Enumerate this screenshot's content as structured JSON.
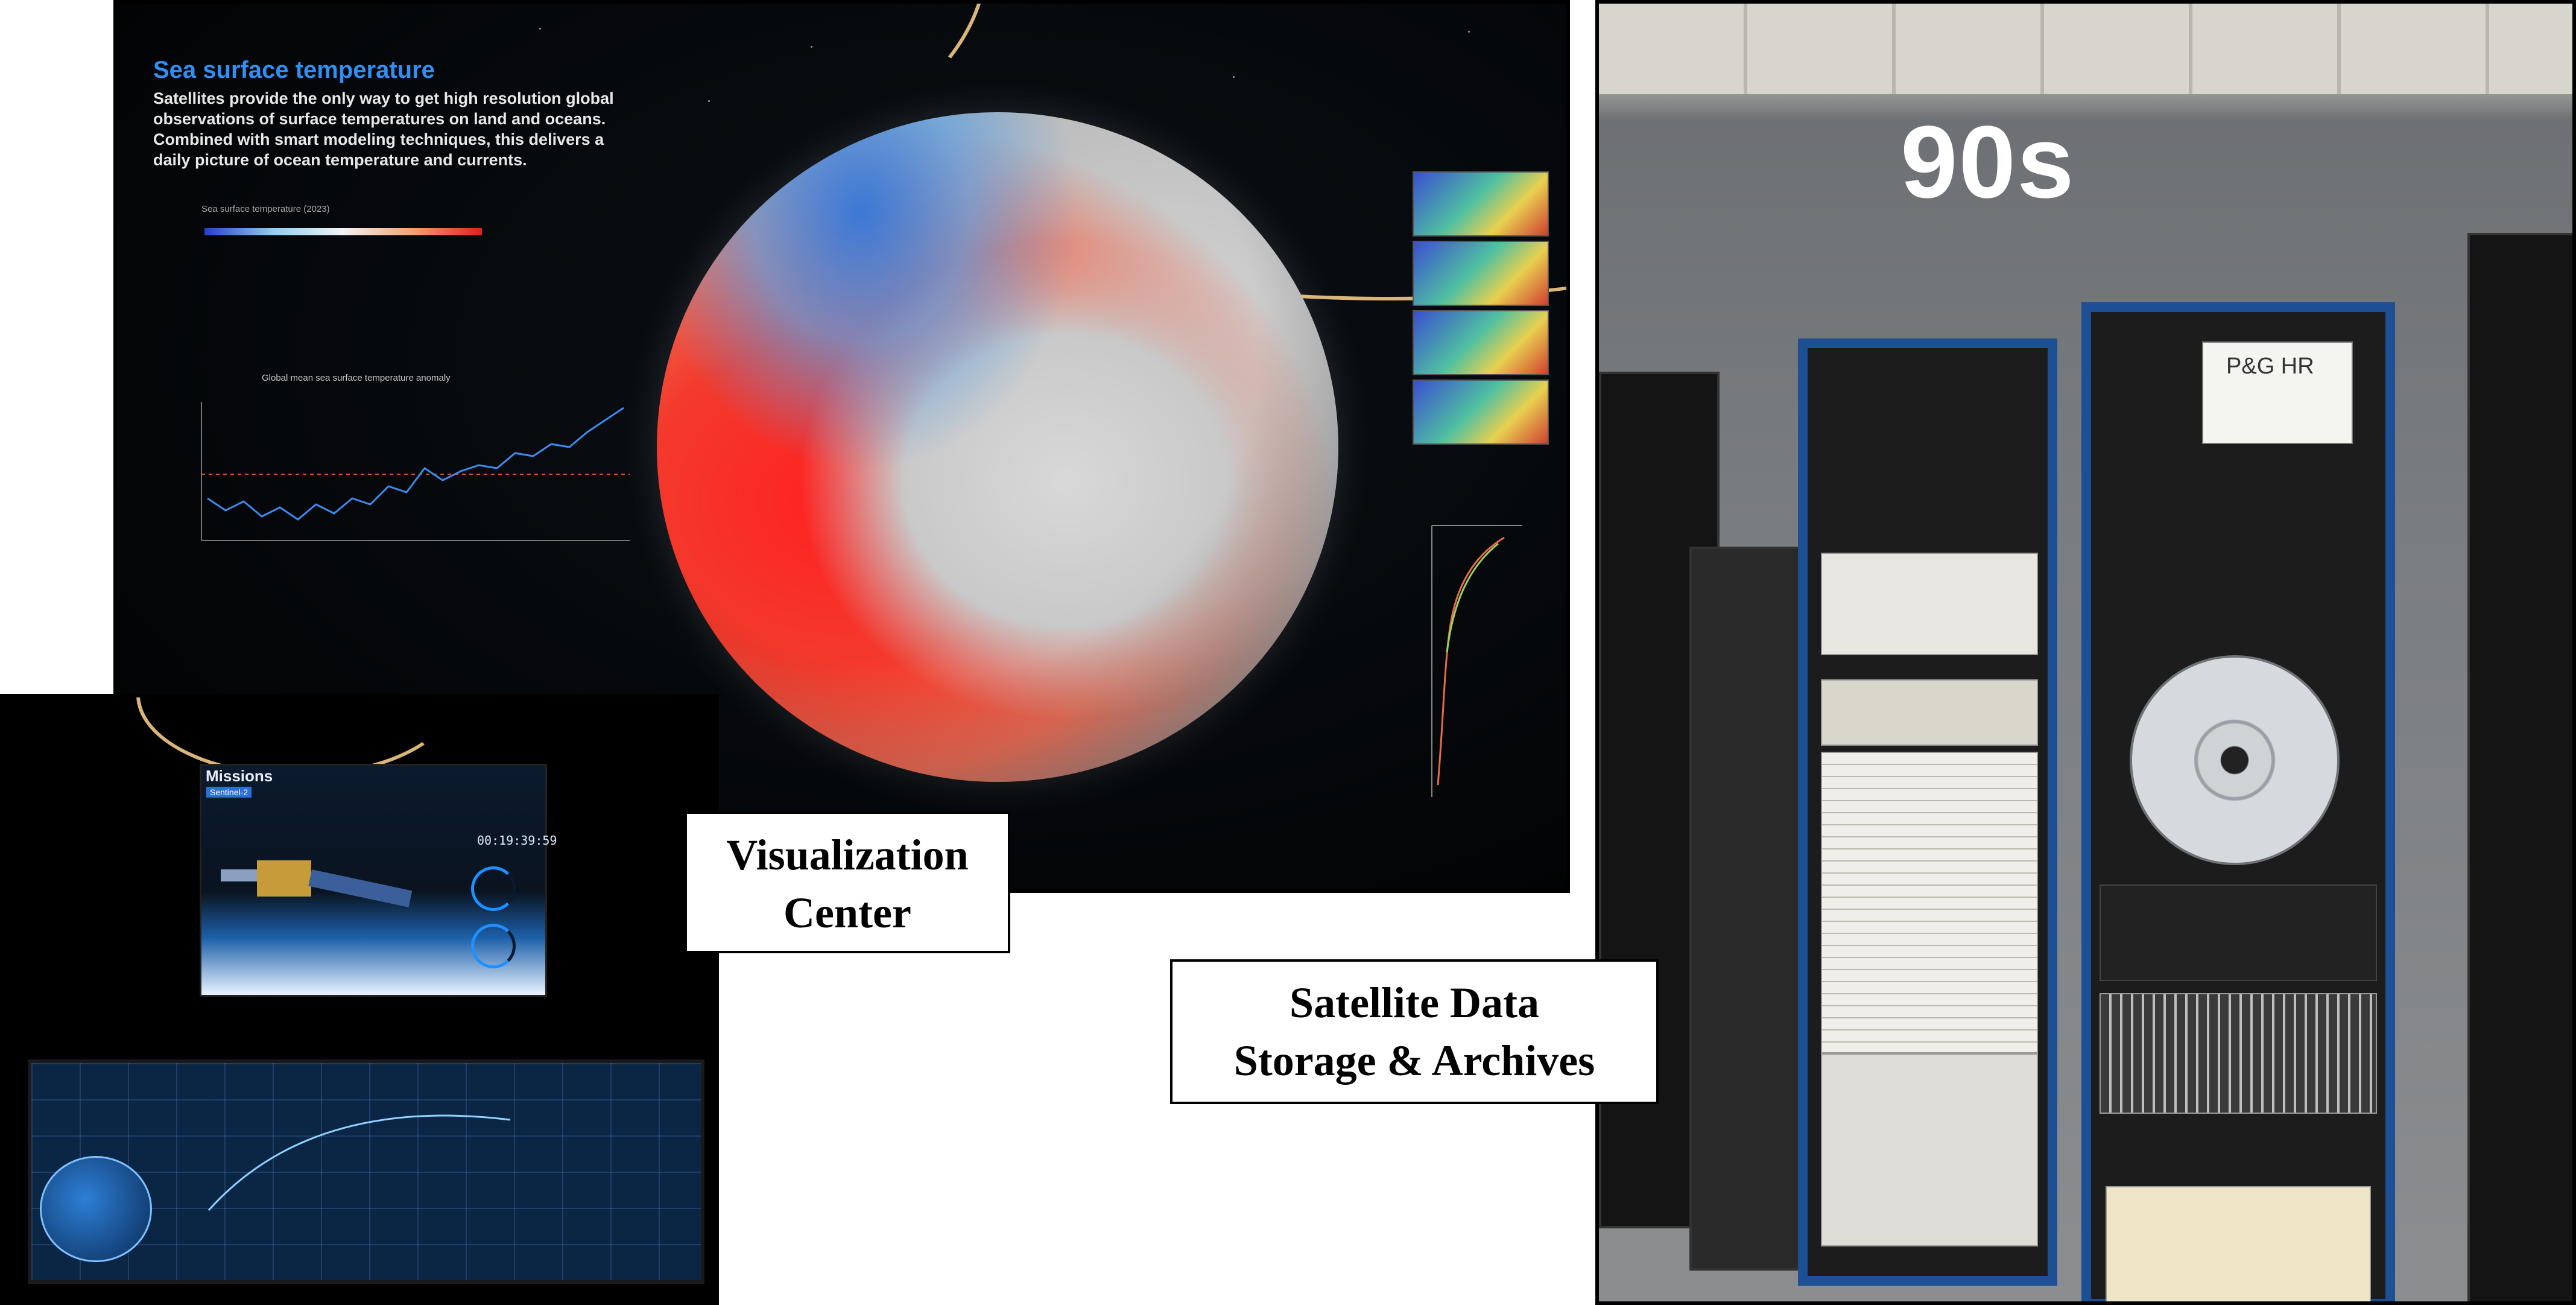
{
  "visualization_photo": {
    "title": "Sea surface temperature",
    "description": "Satellites provide the only way to get high resolution global observations of surface temperatures on land and oceans. Combined with smart modeling techniques, this delivers a daily picture of ocean temperature and currents.",
    "colorbar_label": "Sea surface temperature (2023)",
    "anomaly_label": "Global mean sea surface temperature anomaly"
  },
  "missions_photo": {
    "screen_title": "Missions",
    "mission_tag": "Sentinel-2",
    "clock": "00:19:39:59"
  },
  "archive_photo": {
    "era_sign": "90s",
    "rack_label": "P&G HR"
  },
  "captions": {
    "visualization_line1": "Visualization",
    "visualization_line2": "Center",
    "archive_line1": "Satellite Data",
    "archive_line2": "Storage & Archives"
  },
  "colors": {
    "rack_blue": "#1d4f95",
    "title_blue": "#2f8ff2",
    "globe_red": "#f33a2c"
  }
}
